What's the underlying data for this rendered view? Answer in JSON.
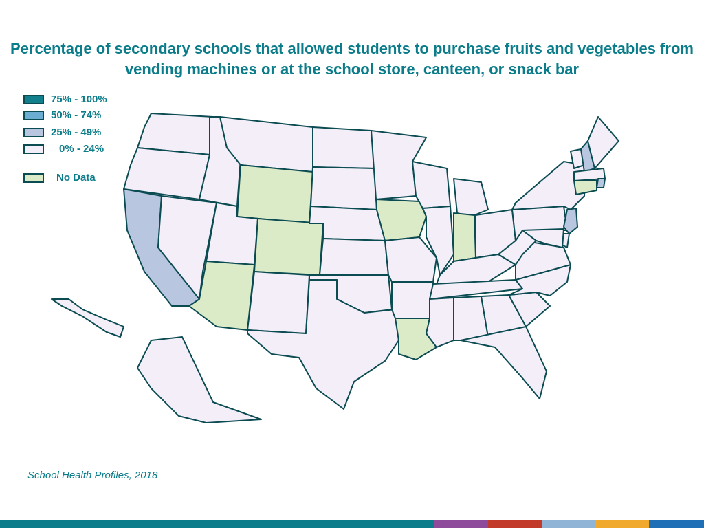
{
  "title": "Percentage of secondary schools that allowed students to purchase fruits and vegetables from vending machines or at the school store, canteen, or snack bar",
  "legend": [
    {
      "label": "75% - 100%",
      "color": "#11808c"
    },
    {
      "label": "50% - 74%",
      "color": "#6baed1"
    },
    {
      "label": "25% - 49%",
      "color": "#b8c6e0"
    },
    {
      "label": "0% - 24%",
      "color": "#f3eef8"
    },
    {
      "label": "No Data",
      "color": "#dcebc7"
    }
  ],
  "categories": {
    "c0": "#f3eef8",
    "c25": "#b8c6e0",
    "nodata": "#dcebc7"
  },
  "states": [
    {
      "id": "WA",
      "category": "c0"
    },
    {
      "id": "OR",
      "category": "c0"
    },
    {
      "id": "CA",
      "category": "c25"
    },
    {
      "id": "NV",
      "category": "c0"
    },
    {
      "id": "ID",
      "category": "c0"
    },
    {
      "id": "MT",
      "category": "c0"
    },
    {
      "id": "WY",
      "category": "nodata"
    },
    {
      "id": "UT",
      "category": "c0"
    },
    {
      "id": "CO",
      "category": "nodata"
    },
    {
      "id": "AZ",
      "category": "nodata"
    },
    {
      "id": "NM",
      "category": "c0"
    },
    {
      "id": "ND",
      "category": "c0"
    },
    {
      "id": "SD",
      "category": "c0"
    },
    {
      "id": "NE",
      "category": "c0"
    },
    {
      "id": "KS",
      "category": "c0"
    },
    {
      "id": "OK",
      "category": "c0"
    },
    {
      "id": "TX",
      "category": "c0"
    },
    {
      "id": "MN",
      "category": "c0"
    },
    {
      "id": "IA",
      "category": "nodata"
    },
    {
      "id": "MO",
      "category": "c0"
    },
    {
      "id": "AR",
      "category": "c0"
    },
    {
      "id": "LA",
      "category": "nodata"
    },
    {
      "id": "WI",
      "category": "c0"
    },
    {
      "id": "IL",
      "category": "c0"
    },
    {
      "id": "MI",
      "category": "c0"
    },
    {
      "id": "IN",
      "category": "nodata"
    },
    {
      "id": "OH",
      "category": "c0"
    },
    {
      "id": "KY",
      "category": "c0"
    },
    {
      "id": "TN",
      "category": "c0"
    },
    {
      "id": "MS",
      "category": "c0"
    },
    {
      "id": "AL",
      "category": "c0"
    },
    {
      "id": "GA",
      "category": "c0"
    },
    {
      "id": "FL",
      "category": "c0"
    },
    {
      "id": "SC",
      "category": "c0"
    },
    {
      "id": "NC",
      "category": "c0"
    },
    {
      "id": "VA",
      "category": "c0"
    },
    {
      "id": "WV",
      "category": "c0"
    },
    {
      "id": "PA",
      "category": "c0"
    },
    {
      "id": "NY",
      "category": "c0"
    },
    {
      "id": "VT",
      "category": "c0"
    },
    {
      "id": "NH",
      "category": "c25"
    },
    {
      "id": "ME",
      "category": "c0"
    },
    {
      "id": "MA",
      "category": "c0"
    },
    {
      "id": "RI",
      "category": "c25"
    },
    {
      "id": "CT",
      "category": "nodata"
    },
    {
      "id": "NJ",
      "category": "c25"
    },
    {
      "id": "DE",
      "category": "c0"
    },
    {
      "id": "MD",
      "category": "c0"
    },
    {
      "id": "AK",
      "category": "c0"
    },
    {
      "id": "HI",
      "category": "c0"
    }
  ],
  "source": "School Health Profiles, 2018",
  "bottom_bar_colors": [
    "#0b7c89",
    "#8e4b9b",
    "#c23a2a",
    "#8fb4d6",
    "#f0a92d",
    "#1f6fb6"
  ]
}
